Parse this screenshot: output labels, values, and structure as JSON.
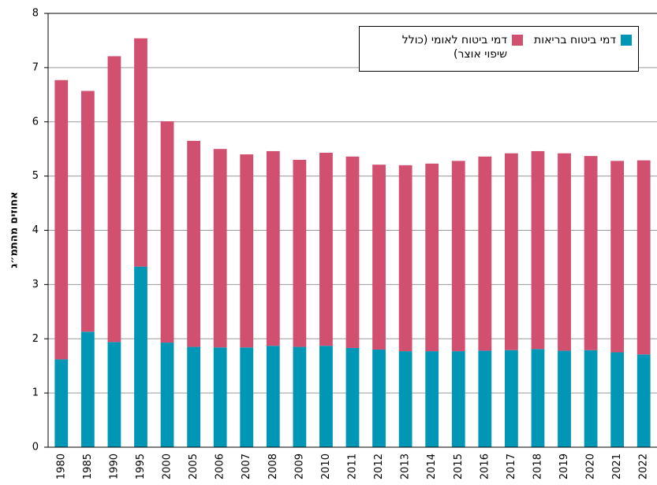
{
  "chart_data": {
    "type": "stacked_bar",
    "y_label": "אחוזים מהתמ״ג",
    "categories": [
      "1980",
      "1985",
      "1990",
      "1995",
      "2000",
      "2005",
      "2006",
      "2007",
      "2008",
      "2009",
      "2010",
      "2011",
      "2012",
      "2013",
      "2014",
      "2015",
      "2016",
      "2017",
      "2018",
      "2019",
      "2020",
      "2021",
      "2022"
    ],
    "series": [
      {
        "name": "דמי ביטוח בריאות",
        "color": "#0097b7",
        "values": [
          1.62,
          2.13,
          1.94,
          3.33,
          1.93,
          1.85,
          1.84,
          1.84,
          1.87,
          1.85,
          1.87,
          1.83,
          1.8,
          1.77,
          1.77,
          1.77,
          1.78,
          1.79,
          1.81,
          1.78,
          1.79,
          1.75,
          1.71
        ]
      },
      {
        "name": "דמי ביטוח לאומי (כולל שיפוי אוצר)",
        "color": "#d1506f",
        "values": [
          5.15,
          4.44,
          5.27,
          4.21,
          4.08,
          3.8,
          3.66,
          3.56,
          3.59,
          3.45,
          3.56,
          3.53,
          3.41,
          3.43,
          3.46,
          3.51,
          3.58,
          3.63,
          3.65,
          3.64,
          3.58,
          3.53,
          3.58
        ]
      }
    ],
    "ylim": [
      0,
      8
    ],
    "yticks": [
      0,
      1,
      2,
      3,
      4,
      5,
      6,
      7,
      8
    ],
    "grid": true
  }
}
